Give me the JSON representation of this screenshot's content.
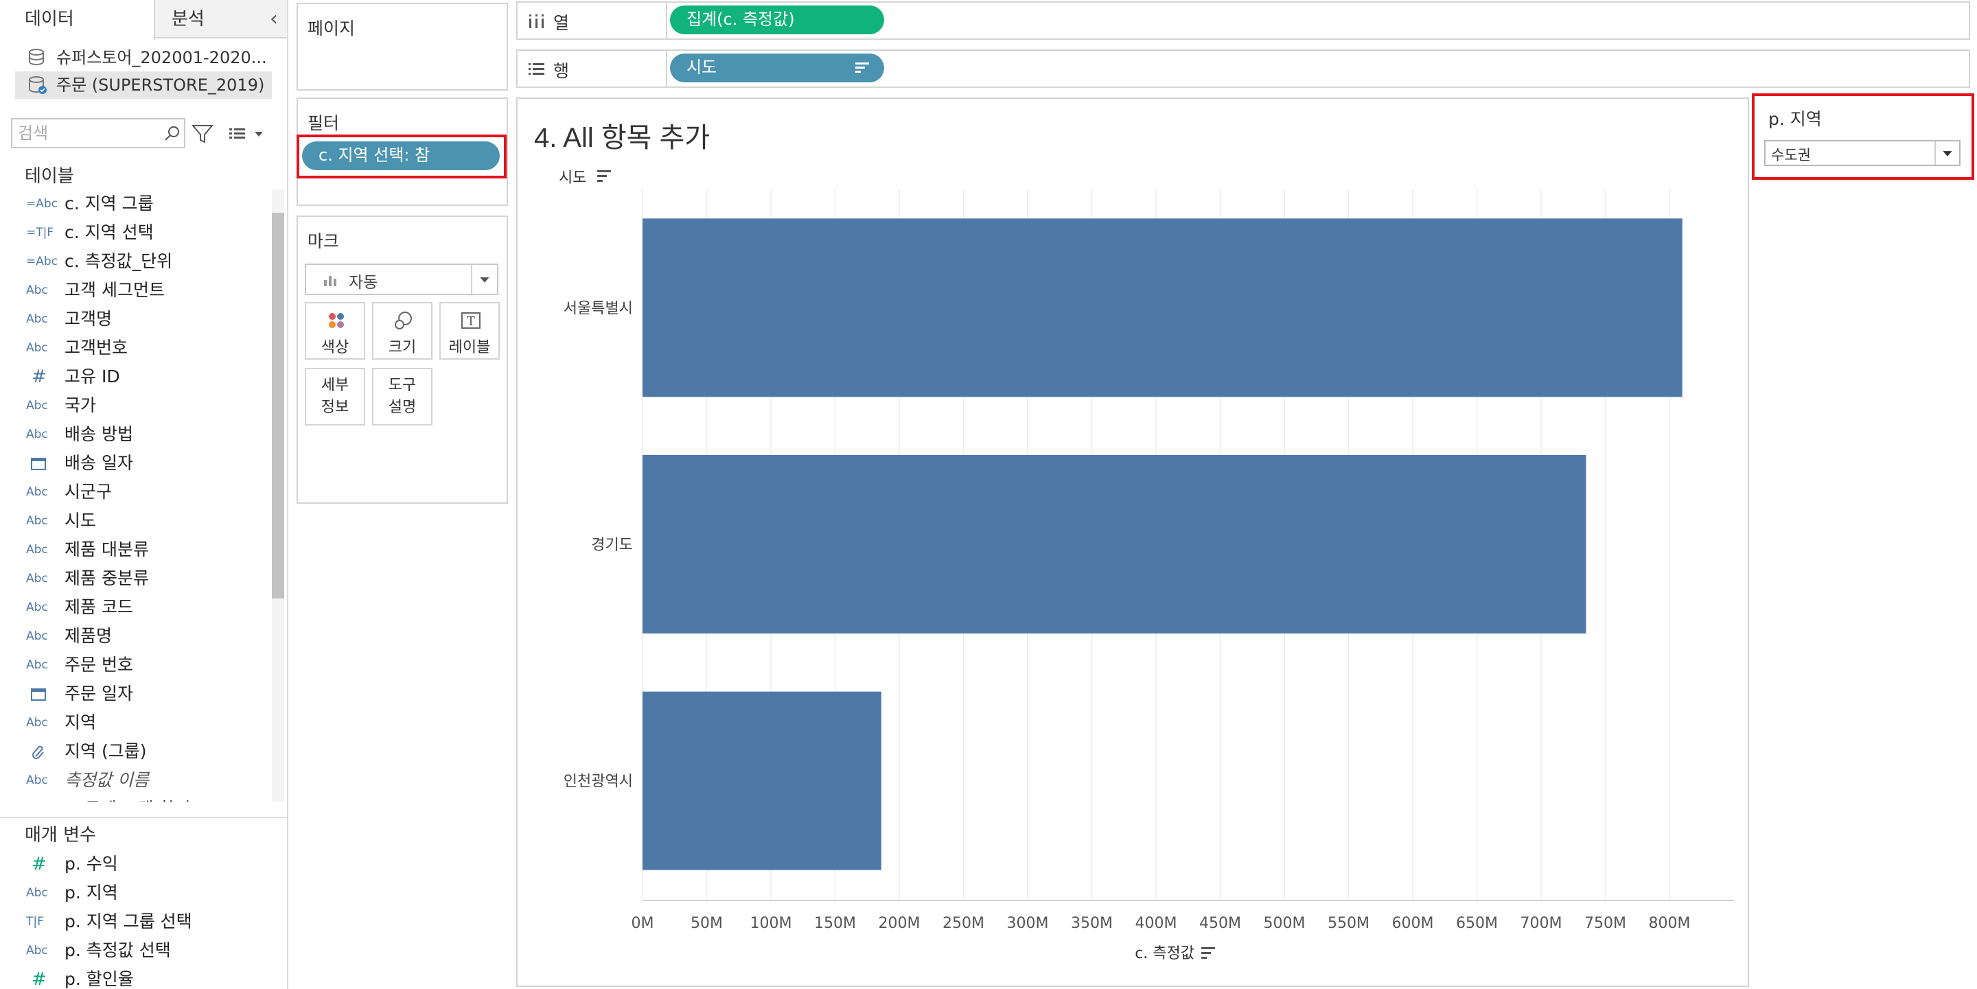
{
  "data_pane": {
    "tabs": [
      "데이터",
      "분석"
    ],
    "datasources": [
      {
        "name": "슈퍼스토어_202001-2020...",
        "selected": false
      },
      {
        "name": "주문 (SUPERSTORE_2019)",
        "selected": true
      }
    ],
    "search_placeholder": "검색",
    "tables_header": "테이블",
    "fields": [
      {
        "type": "=Abc",
        "name": "c. 지역 그룹"
      },
      {
        "type": "=T|F",
        "name": "c. 지역 선택"
      },
      {
        "type": "=Abc",
        "name": "c. 측정값_단위"
      },
      {
        "type": "Abc",
        "name": "고객 세그먼트"
      },
      {
        "type": "Abc",
        "name": "고객명"
      },
      {
        "type": "Abc",
        "name": "고객번호"
      },
      {
        "type": "#",
        "name": "고유 ID"
      },
      {
        "type": "Abc",
        "name": "국가"
      },
      {
        "type": "Abc",
        "name": "배송 방법"
      },
      {
        "type": "date",
        "name": "배송 일자"
      },
      {
        "type": "Abc",
        "name": "시군구"
      },
      {
        "type": "Abc",
        "name": "시도"
      },
      {
        "type": "Abc",
        "name": "제품 대분류"
      },
      {
        "type": "Abc",
        "name": "제품 중분류"
      },
      {
        "type": "Abc",
        "name": "제품 코드"
      },
      {
        "type": "Abc",
        "name": "제품명"
      },
      {
        "type": "Abc",
        "name": "주문 번호"
      },
      {
        "type": "date",
        "name": "주문 일자"
      },
      {
        "type": "Abc",
        "name": "지역"
      },
      {
        "type": "clip",
        "name": "지역 (그룹)"
      },
      {
        "type": "Abc",
        "name": "측정값 이름",
        "italic": true
      },
      {
        "type": "=T|F",
        "name": "c. 문제 고객 찾기"
      }
    ],
    "params_header": "매개 변수",
    "params": [
      {
        "type": "#",
        "name": "p. 수익"
      },
      {
        "type": "Abc",
        "name": "p. 지역"
      },
      {
        "type": "T|F",
        "name": "p. 지역 그룹 선택"
      },
      {
        "type": "Abc",
        "name": "p. 측정값 선택"
      },
      {
        "type": "#",
        "name": "p. 할인율"
      }
    ]
  },
  "pages_card": {
    "title": "페이지"
  },
  "filters_card": {
    "title": "필터",
    "pill": "c. 지역 선택: 참"
  },
  "marks_card": {
    "title": "마크",
    "mark_type": "자동",
    "buttons": [
      "색상",
      "크기",
      "레이블"
    ],
    "buttons2": [
      [
        "세부",
        "정보"
      ],
      [
        "도구",
        "설명"
      ]
    ]
  },
  "columns_shelf": {
    "label": "열",
    "pill": "집계(c. 측정값)"
  },
  "rows_shelf": {
    "label": "행",
    "pill": "시도"
  },
  "view": {
    "title": "4. All 항목 추가",
    "row_header": "시도"
  },
  "parameter_card": {
    "title": "p. 지역",
    "value": "수도권"
  },
  "chart_data": {
    "type": "bar",
    "orientation": "horizontal",
    "categories": [
      "서울특별시",
      "경기도",
      "인천광역시"
    ],
    "values": [
      810,
      735,
      186
    ],
    "value_unit": "M",
    "xlabel": "c. 측정값",
    "ylabel": "시도",
    "xlim": [
      0,
      850
    ],
    "x_ticks": [
      "0M",
      "50M",
      "100M",
      "150M",
      "200M",
      "250M",
      "300M",
      "350M",
      "400M",
      "450M",
      "500M",
      "550M",
      "600M",
      "650M",
      "700M",
      "750M",
      "800M"
    ],
    "bar_color": "#4e79a7",
    "grid": "vertical"
  },
  "colors": {
    "pill_blue": "#4b93b1",
    "pill_green": "#11b37d",
    "highlight_red": "#e1141c"
  }
}
